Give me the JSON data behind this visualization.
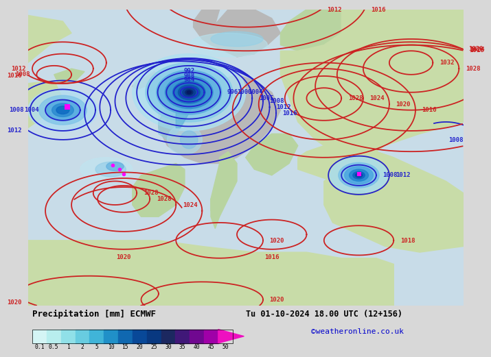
{
  "title_left": "Precipitation [mm] ECMWF",
  "title_right": "Tu 01-10-2024 18.00 UTC (12+156)",
  "credit": "©weatheronline.co.uk",
  "colorbar_tick_labels": [
    "0.1",
    "0.5",
    "1",
    "2",
    "5",
    "10",
    "15",
    "20",
    "25",
    "30",
    "35",
    "40",
    "45",
    "50"
  ],
  "colorbar_colors": [
    "#d4f5f5",
    "#b8eeee",
    "#90e0e8",
    "#68cce0",
    "#40b4d8",
    "#2090c8",
    "#1068b0",
    "#084898",
    "#083880",
    "#1c2860",
    "#401878",
    "#700890",
    "#a000a8",
    "#cc00b0",
    "#ee10c0"
  ],
  "fig_width": 6.34,
  "fig_height": 4.9,
  "bg_gray": "#d8d8d8",
  "ocean_color": "#c8dce8",
  "land_color": "#b8d4a0",
  "land_color2": "#c8dca8",
  "gray_land": "#b8b8b8",
  "isobar_blue": "#2222cc",
  "isobar_red": "#cc2222"
}
